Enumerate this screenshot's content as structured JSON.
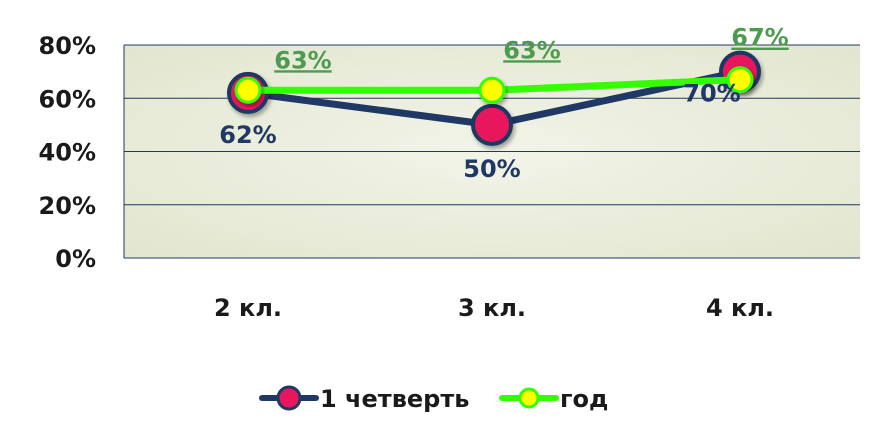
{
  "chart_data": {
    "type": "line",
    "categories": [
      "2 кл.",
      "3 кл.",
      "4 кл."
    ],
    "y_ticks": [
      "0%",
      "20%",
      "40%",
      "60%",
      "80%"
    ],
    "ylim": [
      0,
      80
    ],
    "grid": true,
    "legend_position": "bottom",
    "series": [
      {
        "name": "1 четверть",
        "values": [
          62,
          50,
          70
        ],
        "labels": [
          "62%",
          "50%",
          "70%"
        ],
        "line_color": "#1f3864",
        "marker_color": "#e8175d",
        "label_color": "#1f3864"
      },
      {
        "name": "год",
        "values": [
          63,
          63,
          67
        ],
        "labels": [
          "63%",
          "63%",
          "67%"
        ],
        "line_color": "#33ff00",
        "marker_color": "#ffff00",
        "label_color": "#4e9a50"
      }
    ]
  },
  "colors": {
    "plot_background": "#eef0e2",
    "gridline": "#1f3864",
    "axis_text": "#1a1a1a"
  }
}
